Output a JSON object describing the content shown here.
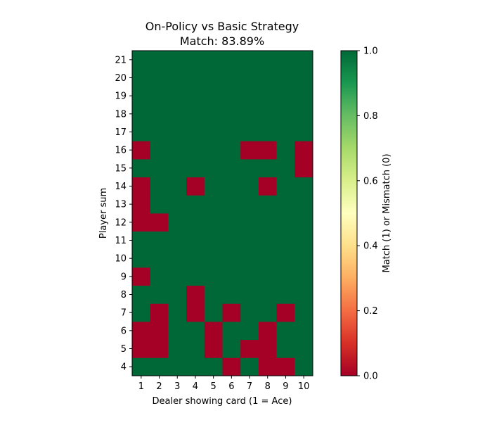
{
  "chart_data": {
    "type": "heatmap",
    "title": "On-Policy vs Basic Strategy",
    "subtitle": "Match: 83.89%",
    "xlabel": "Dealer showing card (1 = Ace)",
    "ylabel": "Player sum",
    "x": [
      1,
      2,
      3,
      4,
      5,
      6,
      7,
      8,
      9,
      10
    ],
    "y": [
      4,
      5,
      6,
      7,
      8,
      9,
      10,
      11,
      12,
      13,
      14,
      15,
      16,
      17,
      18,
      19,
      20,
      21
    ],
    "values": [
      [
        1,
        1,
        1,
        1,
        1,
        0,
        1,
        0,
        0,
        1
      ],
      [
        0,
        0,
        1,
        1,
        0,
        1,
        0,
        0,
        1,
        1
      ],
      [
        0,
        0,
        1,
        1,
        0,
        1,
        1,
        0,
        1,
        1
      ],
      [
        1,
        0,
        1,
        0,
        1,
        0,
        1,
        1,
        0,
        1
      ],
      [
        1,
        1,
        1,
        0,
        1,
        1,
        1,
        1,
        1,
        1
      ],
      [
        0,
        1,
        1,
        1,
        1,
        1,
        1,
        1,
        1,
        1
      ],
      [
        1,
        1,
        1,
        1,
        1,
        1,
        1,
        1,
        1,
        1
      ],
      [
        1,
        1,
        1,
        1,
        1,
        1,
        1,
        1,
        1,
        1
      ],
      [
        0,
        0,
        1,
        1,
        1,
        1,
        1,
        1,
        1,
        1
      ],
      [
        0,
        1,
        1,
        1,
        1,
        1,
        1,
        1,
        1,
        1
      ],
      [
        0,
        1,
        1,
        0,
        1,
        1,
        1,
        0,
        1,
        1
      ],
      [
        1,
        1,
        1,
        1,
        1,
        1,
        1,
        1,
        1,
        0
      ],
      [
        0,
        1,
        1,
        1,
        1,
        1,
        0,
        0,
        1,
        0
      ],
      [
        1,
        1,
        1,
        1,
        1,
        1,
        1,
        1,
        1,
        1
      ],
      [
        1,
        1,
        1,
        1,
        1,
        1,
        1,
        1,
        1,
        1
      ],
      [
        1,
        1,
        1,
        1,
        1,
        1,
        1,
        1,
        1,
        1
      ],
      [
        1,
        1,
        1,
        1,
        1,
        1,
        1,
        1,
        1,
        1
      ],
      [
        1,
        1,
        1,
        1,
        1,
        1,
        1,
        1,
        1,
        1
      ]
    ],
    "colorbar": {
      "label": "Match (1) or Mismatch (0)",
      "range": [
        0.0,
        1.0
      ],
      "ticks": [
        "0.0",
        "0.2",
        "0.4",
        "0.6",
        "0.8",
        "1.0"
      ],
      "colormap": "RdYlGn",
      "colors": {
        "mismatch": "#a50026",
        "match": "#006837"
      }
    },
    "grid": false,
    "legend": "none"
  }
}
